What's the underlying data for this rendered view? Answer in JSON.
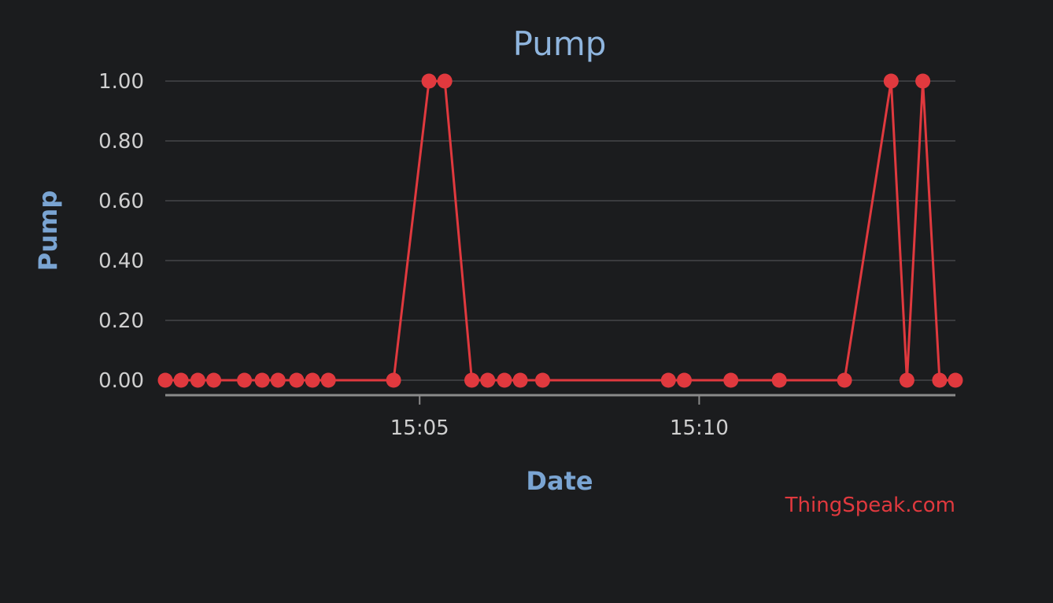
{
  "chart_data": {
    "type": "line",
    "title": "Pump",
    "xlabel": "Date",
    "ylabel": "Pump",
    "credit": "ThingSpeak.com",
    "ylim": [
      0,
      1
    ],
    "xlim": [
      "15:00:27",
      "15:14:35"
    ],
    "y_ticks": [
      "0.00",
      "0.20",
      "0.40",
      "0.60",
      "0.80",
      "1.00"
    ],
    "x_ticks": [
      "15:05",
      "15:10"
    ],
    "grid": true,
    "series": [
      {
        "color": "#e0393e",
        "points": [
          {
            "x": "15:00:27",
            "y": 0
          },
          {
            "x": "15:00:44",
            "y": 0
          },
          {
            "x": "15:01:02",
            "y": 0
          },
          {
            "x": "15:01:19",
            "y": 0
          },
          {
            "x": "15:01:52",
            "y": 0
          },
          {
            "x": "15:02:11",
            "y": 0
          },
          {
            "x": "15:02:28",
            "y": 0
          },
          {
            "x": "15:02:48",
            "y": 0
          },
          {
            "x": "15:03:05",
            "y": 0
          },
          {
            "x": "15:03:22",
            "y": 0
          },
          {
            "x": "15:04:32",
            "y": 0
          },
          {
            "x": "15:05:10",
            "y": 1
          },
          {
            "x": "15:05:27",
            "y": 1
          },
          {
            "x": "15:05:56",
            "y": 0
          },
          {
            "x": "15:06:13",
            "y": 0
          },
          {
            "x": "15:06:31",
            "y": 0
          },
          {
            "x": "15:06:48",
            "y": 0
          },
          {
            "x": "15:07:12",
            "y": 0
          },
          {
            "x": "15:09:27",
            "y": 0
          },
          {
            "x": "15:09:44",
            "y": 0
          },
          {
            "x": "15:10:34",
            "y": 0
          },
          {
            "x": "15:11:26",
            "y": 0
          },
          {
            "x": "15:12:36",
            "y": 0
          },
          {
            "x": "15:13:26",
            "y": 1
          },
          {
            "x": "15:13:43",
            "y": 0
          },
          {
            "x": "15:14:00",
            "y": 1
          },
          {
            "x": "15:14:18",
            "y": 0
          },
          {
            "x": "15:14:35",
            "y": 0
          }
        ]
      }
    ]
  }
}
